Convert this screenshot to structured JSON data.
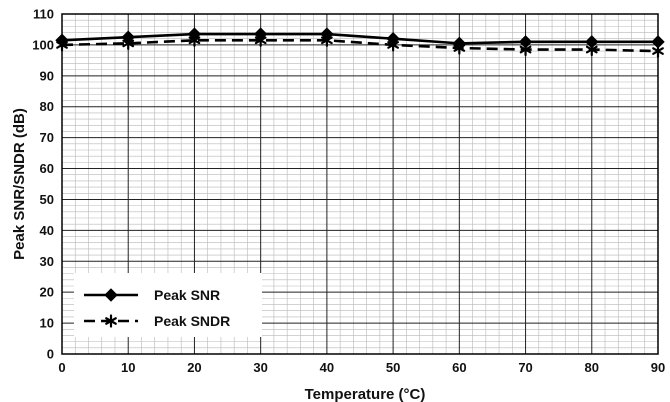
{
  "chart_data": {
    "type": "line",
    "title": "",
    "xlabel": "Temperature (°C)",
    "ylabel": "Peak SNR/SNDR (dB)",
    "xlim": [
      0,
      90
    ],
    "ylim": [
      0,
      110
    ],
    "grid": true,
    "legend_position": "bottom-left",
    "x_ticks": [
      0,
      10,
      20,
      30,
      40,
      50,
      60,
      70,
      80,
      90
    ],
    "y_ticks": [
      0,
      10,
      20,
      30,
      40,
      50,
      60,
      70,
      80,
      90,
      100,
      110
    ],
    "series": [
      {
        "name": "Peak SNR",
        "marker": "diamond",
        "line_style": "solid",
        "color": "#000000",
        "x": [
          0,
          10,
          20,
          30,
          40,
          50,
          60,
          70,
          80,
          90
        ],
        "y": [
          101.5,
          102.5,
          103.5,
          103.5,
          103.5,
          102,
          100.5,
          101,
          101,
          101
        ]
      },
      {
        "name": "Peak SNDR",
        "marker": "asterisk",
        "line_style": "dashed",
        "color": "#000000",
        "x": [
          0,
          10,
          20,
          30,
          40,
          50,
          60,
          70,
          80,
          90
        ],
        "y": [
          100,
          100.5,
          101.5,
          101.5,
          101.5,
          100,
          99,
          98.5,
          98.5,
          98
        ]
      }
    ]
  }
}
